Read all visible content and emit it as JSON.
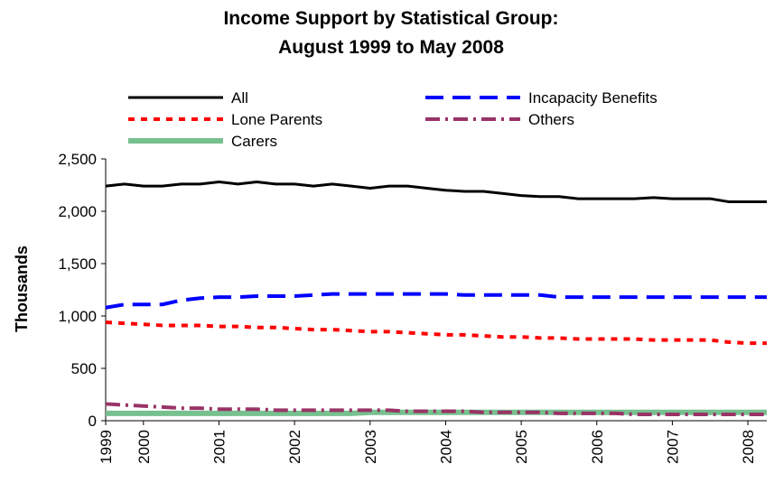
{
  "chart_data": {
    "type": "line",
    "title_line1": "Income Support by Statistical Group:",
    "title_line2": "August 1999 to May 2008",
    "xlabel": "",
    "ylabel": "Thousands",
    "ylim": [
      0,
      2500
    ],
    "yticks": [
      0,
      500,
      1000,
      1500,
      2000,
      2500
    ],
    "ytick_labels": [
      "0",
      "500",
      "1,000",
      "1,500",
      "2,000",
      "2,500"
    ],
    "x": [
      "Aug 1999",
      "Nov 1999",
      "Feb 2000",
      "May 2000",
      "Aug 2000",
      "Nov 2000",
      "Feb 2001",
      "May 2001",
      "Aug 2001",
      "Nov 2001",
      "Feb 2002",
      "May 2002",
      "Aug 2002",
      "Nov 2002",
      "Feb 2003",
      "May 2003",
      "Aug 2003",
      "Nov 2003",
      "Feb 2004",
      "May 2004",
      "Aug 2004",
      "Nov 2004",
      "Feb 2005",
      "May 2005",
      "Aug 2005",
      "Nov 2005",
      "Feb 2006",
      "May 2006",
      "Aug 2006",
      "Nov 2006",
      "Feb 2007",
      "May 2007",
      "Aug 2007",
      "Nov 2007",
      "Feb 2008",
      "May 2008"
    ],
    "year_labels": [
      {
        "label": "1999",
        "index": 0
      },
      {
        "label": "2000",
        "index": 2
      },
      {
        "label": "2001",
        "index": 6
      },
      {
        "label": "2002",
        "index": 10
      },
      {
        "label": "2003",
        "index": 14
      },
      {
        "label": "2004",
        "index": 18
      },
      {
        "label": "2005",
        "index": 22
      },
      {
        "label": "2006",
        "index": 26
      },
      {
        "label": "2007",
        "index": 30
      },
      {
        "label": "2008",
        "index": 34
      }
    ],
    "legend_placement": "top",
    "grid": false,
    "series": [
      {
        "name": "All",
        "color": "#000000",
        "dash": "solid",
        "values": [
          2240,
          2260,
          2240,
          2240,
          2260,
          2260,
          2280,
          2260,
          2280,
          2260,
          2260,
          2240,
          2260,
          2240,
          2220,
          2240,
          2240,
          2220,
          2200,
          2190,
          2190,
          2170,
          2150,
          2140,
          2140,
          2120,
          2120,
          2120,
          2120,
          2130,
          2120,
          2120,
          2120,
          2090,
          2090,
          2090
        ]
      },
      {
        "name": "Incapacity Benefits",
        "color": "#0000ff",
        "dash": "long",
        "values": [
          1080,
          1110,
          1110,
          1110,
          1150,
          1170,
          1180,
          1180,
          1190,
          1190,
          1190,
          1200,
          1210,
          1210,
          1210,
          1210,
          1210,
          1210,
          1210,
          1200,
          1200,
          1200,
          1200,
          1200,
          1180,
          1180,
          1180,
          1180,
          1180,
          1180,
          1180,
          1180,
          1180,
          1180,
          1180,
          1180
        ]
      },
      {
        "name": "Lone Parents",
        "color": "#ff0000",
        "dash": "short",
        "values": [
          940,
          930,
          920,
          910,
          910,
          910,
          900,
          900,
          890,
          890,
          880,
          870,
          870,
          860,
          850,
          850,
          840,
          830,
          820,
          820,
          810,
          800,
          800,
          790,
          790,
          780,
          780,
          780,
          780,
          770,
          770,
          770,
          770,
          750,
          740,
          740
        ]
      },
      {
        "name": "Others",
        "color": "#993366",
        "dash": "dashdot",
        "values": [
          160,
          150,
          140,
          130,
          120,
          120,
          110,
          110,
          110,
          100,
          100,
          100,
          100,
          100,
          100,
          100,
          90,
          90,
          90,
          90,
          80,
          80,
          80,
          80,
          70,
          70,
          70,
          70,
          60,
          60,
          60,
          60,
          60,
          60,
          60,
          60
        ]
      },
      {
        "name": "Carers",
        "color": "#77c08f",
        "dash": "solid",
        "values": [
          70,
          70,
          70,
          70,
          70,
          70,
          70,
          70,
          70,
          70,
          70,
          70,
          70,
          70,
          80,
          80,
          80,
          80,
          80,
          80,
          80,
          80,
          80,
          80,
          80,
          80,
          80,
          80,
          80,
          80,
          80,
          80,
          80,
          80,
          80,
          80
        ]
      }
    ]
  }
}
